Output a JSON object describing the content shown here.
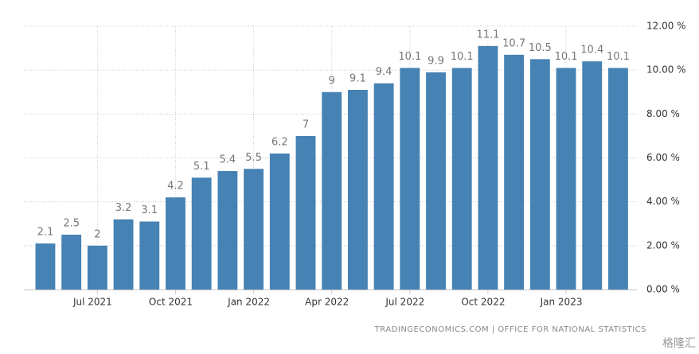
{
  "chart_data": {
    "type": "bar",
    "categories": [
      null,
      null,
      "Jul 2021",
      null,
      null,
      "Oct 2021",
      null,
      null,
      "Jan 2022",
      null,
      null,
      "Apr 2022",
      null,
      null,
      "Jul 2022",
      null,
      null,
      "Oct 2022",
      null,
      null,
      "Jan 2023",
      null,
      null
    ],
    "values": [
      2.1,
      2.5,
      2,
      3.2,
      3.1,
      4.2,
      5.1,
      5.4,
      5.5,
      6.2,
      7,
      9,
      9.1,
      9.4,
      10.1,
      9.9,
      10.1,
      11.1,
      10.7,
      10.5,
      10.1,
      10.4,
      10.1
    ],
    "color": "#4682b4",
    "ylim": [
      0,
      12
    ],
    "yticks": [
      {
        "value": 0,
        "label": "0.00 %"
      },
      {
        "value": 2,
        "label": "2.00 %"
      },
      {
        "value": 4,
        "label": "4.00 %"
      },
      {
        "value": 6,
        "label": "6.00 %"
      },
      {
        "value": 8,
        "label": "8.00 %"
      },
      {
        "value": 10,
        "label": "10.00 %"
      },
      {
        "value": 12,
        "label": "12.00 %"
      }
    ],
    "grid": true,
    "source": "TRADINGECONOMICS.COM | OFFICE FOR NATIONAL STATISTICS",
    "watermark": "格隆汇"
  }
}
